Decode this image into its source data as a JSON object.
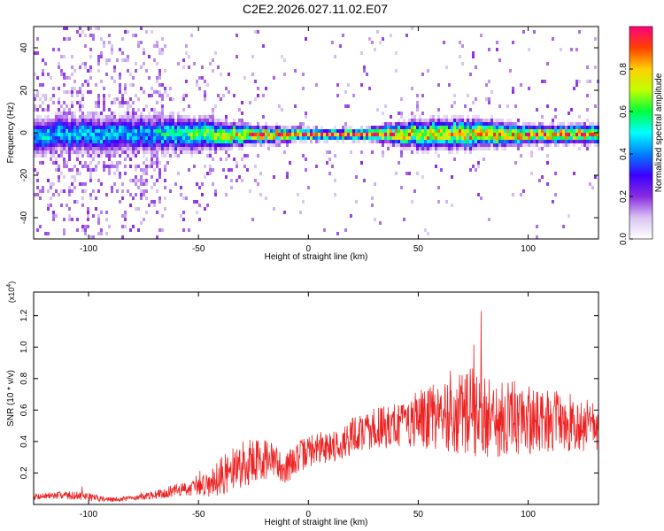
{
  "title": "C2E2.2026.027.11.02.E07",
  "colors": {
    "snr_line": "#ee2222",
    "colormap": [
      "#ffffff",
      "#d9c4f2",
      "#8a2be2",
      "#3b00ff",
      "#0080ff",
      "#00ffff",
      "#00ff40",
      "#c0ff00",
      "#ffd000",
      "#ff4000",
      "#ff0080"
    ]
  },
  "chart_data": [
    {
      "type": "heatmap",
      "xlabel": "Height of straight line (km)",
      "ylabel": "Frequency (Hz)",
      "xlim": [
        -125,
        132
      ],
      "ylim": [
        -50,
        50
      ],
      "xticks": [
        -100,
        -50,
        0,
        50,
        100
      ],
      "yticks": [
        -40,
        -20,
        0,
        20,
        40
      ],
      "xtick_labels": [
        "-100",
        "-50",
        "0",
        "50",
        "100"
      ],
      "ytick_labels": [
        "-40",
        "-20",
        "0",
        "20",
        "40"
      ],
      "colorbar": {
        "label": "Normalized spectral amplitude",
        "range": [
          0,
          1
        ],
        "ticks": [
          0.0,
          0.2,
          0.4,
          0.6,
          0.8
        ],
        "tick_labels": [
          "0.0",
          "0.2",
          "0.4",
          "0.6",
          "0.8"
        ]
      },
      "description_profile": {
        "x": [
          -125,
          -100,
          -75,
          -50,
          -25,
          0,
          25,
          50,
          75,
          100,
          132
        ],
        "peak_amplitude": [
          0.45,
          0.45,
          0.45,
          0.6,
          0.85,
          0.95,
          0.95,
          0.75,
          0.75,
          0.85,
          0.85
        ],
        "spread_hz": [
          10,
          10,
          10,
          9,
          5,
          3,
          3,
          8,
          8,
          5,
          5
        ]
      }
    },
    {
      "type": "line",
      "xlabel": "Height of straight line (km)",
      "ylabel": "SNR (10 * v/v)",
      "y_multiplier": "(x10",
      "y_exponent": "4",
      "xlim": [
        -125,
        132
      ],
      "ylim": [
        0,
        13500
      ],
      "xticks": [
        -100,
        -50,
        0,
        50,
        100
      ],
      "yticks": [
        2000,
        4000,
        6000,
        8000,
        10000,
        12000
      ],
      "xtick_labels": [
        "-100",
        "-50",
        "0",
        "50",
        "100"
      ],
      "ytick_labels": [
        "0.2",
        "0.4",
        "0.6",
        "0.8",
        "1.0",
        "1.2"
      ],
      "series": [
        {
          "name": "SNR",
          "x": [
            -125,
            -110,
            -100,
            -90,
            -80,
            -70,
            -60,
            -50,
            -45,
            -40,
            -35,
            -30,
            -25,
            -20,
            -15,
            -10,
            -5,
            0,
            5,
            10,
            15,
            20,
            30,
            40,
            50,
            60,
            70,
            75,
            80,
            90,
            100,
            110,
            120,
            132
          ],
          "y": [
            500,
            600,
            500,
            300,
            400,
            600,
            900,
            1100,
            1400,
            1800,
            2100,
            2500,
            2800,
            2900,
            2700,
            2300,
            3000,
            3400,
            3600,
            3700,
            3800,
            4400,
            4800,
            5100,
            5400,
            5600,
            5700,
            5800,
            5600,
            5500,
            5400,
            5300,
            5200,
            5000
          ],
          "amplitude": [
            200,
            250,
            250,
            150,
            150,
            250,
            400,
            500,
            900,
            1200,
            1400,
            1500,
            1500,
            1300,
            1100,
            1000,
            1000,
            1000,
            1000,
            1000,
            1000,
            1200,
            1300,
            1500,
            1800,
            2200,
            2600,
            3000,
            2800,
            2500,
            2200,
            2000,
            1800,
            1600
          ]
        }
      ]
    }
  ]
}
